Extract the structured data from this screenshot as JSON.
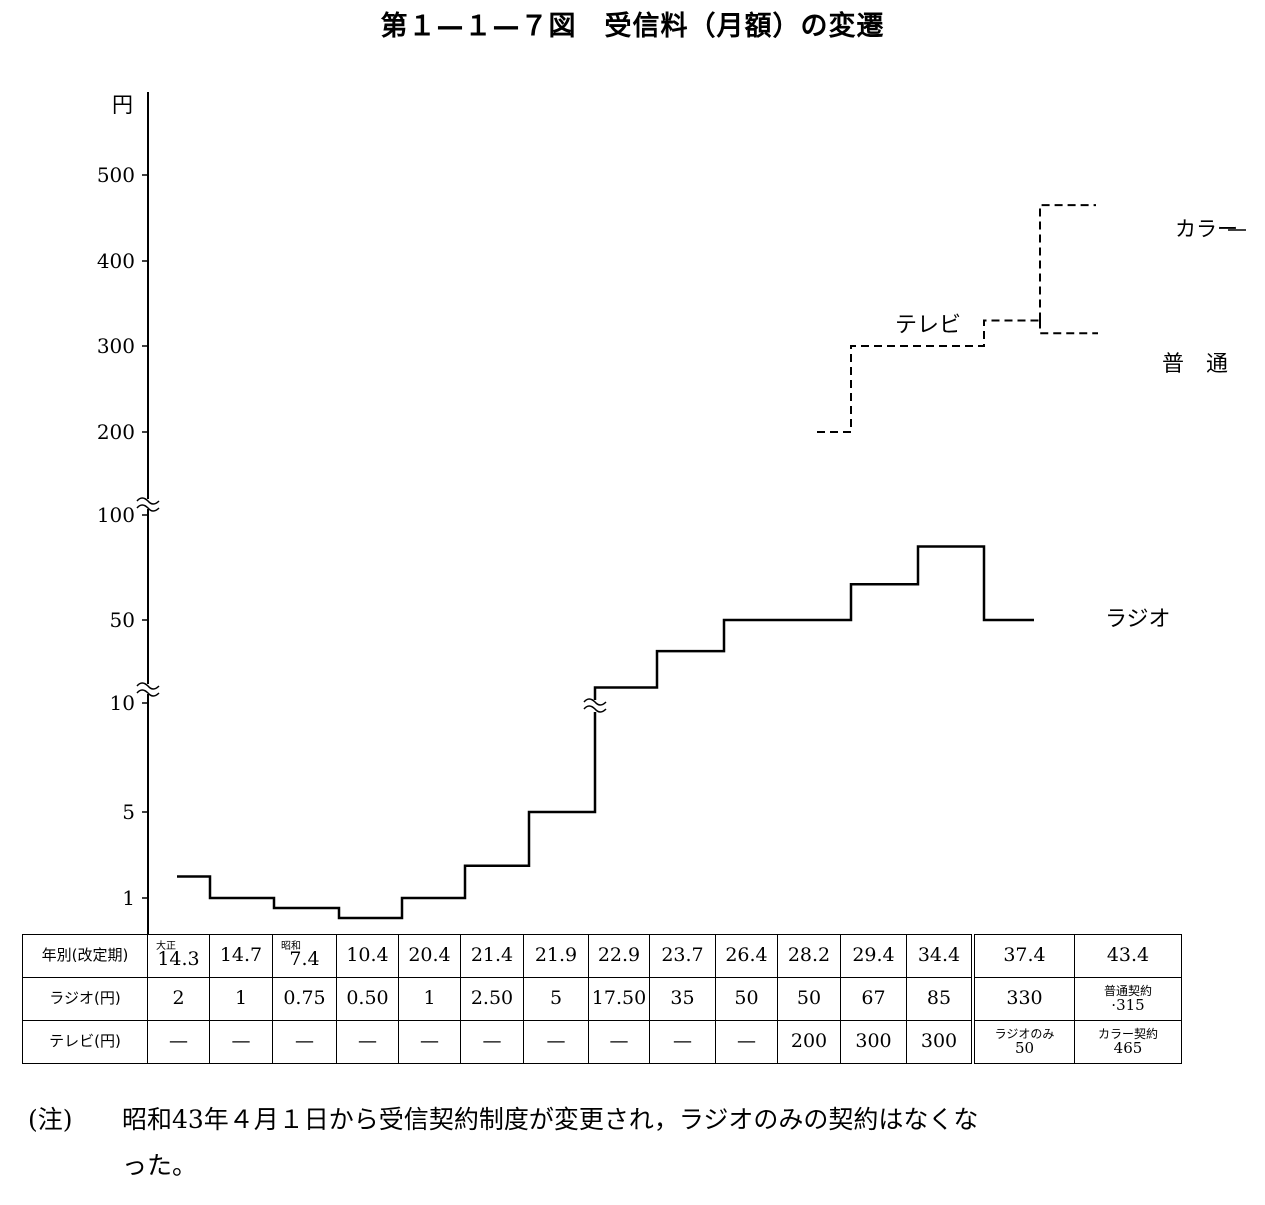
{
  "title": "第１—１—７図　受信料（月額）の変遷",
  "chart_data": {
    "type": "line",
    "style": "step",
    "y_unit": "円",
    "y_axis": {
      "scale": "broken (non-linear segments)",
      "ticks": [
        1,
        5,
        10,
        50,
        100,
        200,
        300,
        400,
        500
      ],
      "breaks": [
        10,
        100
      ]
    },
    "x_categories": [
      "14.3",
      "14.7",
      "7.4",
      "10.4",
      "20.4",
      "21.4",
      "21.9",
      "22.9",
      "23.7",
      "26.4",
      "28.2",
      "29.4",
      "34.4",
      "37.4",
      "43.4"
    ],
    "series": [
      {
        "name": "ラジオ",
        "line": "solid",
        "x": [
          "14.3",
          "14.7",
          "7.4",
          "10.4",
          "20.4",
          "21.4",
          "21.9",
          "22.9",
          "23.7",
          "26.4",
          "28.2",
          "29.4",
          "34.4",
          "37.4"
        ],
        "values": [
          2,
          1,
          0.75,
          0.5,
          1,
          2.5,
          5,
          17.5,
          35,
          50,
          50,
          67,
          85,
          50
        ]
      },
      {
        "name": "テレビ",
        "line": "dashed",
        "x": [
          "28.2",
          "29.4",
          "34.4",
          "37.4"
        ],
        "values": [
          200,
          300,
          300,
          330
        ]
      },
      {
        "name": "カラー",
        "line": "dashed",
        "x": [
          "43.4"
        ],
        "values": [
          465
        ]
      },
      {
        "name": "普　通",
        "line": "dashed",
        "x": [
          "43.4"
        ],
        "values": [
          315
        ]
      }
    ]
  },
  "table": {
    "row_headers": [
      "年別(改定期)",
      "ラジオ(円)",
      "テレビ(円)"
    ],
    "columns": [
      {
        "era": "大正",
        "year": "14.3",
        "radio": "2",
        "tv": "—"
      },
      {
        "era": "",
        "year": "14.7",
        "radio": "1",
        "tv": "—"
      },
      {
        "era": "昭和",
        "year": "7.4",
        "radio": "0.75",
        "tv": "—"
      },
      {
        "era": "",
        "year": "10.4",
        "radio": "0.50",
        "tv": "—"
      },
      {
        "era": "",
        "year": "20.4",
        "radio": "1",
        "tv": "—"
      },
      {
        "era": "",
        "year": "21.4",
        "radio": "2.50",
        "tv": "—"
      },
      {
        "era": "",
        "year": "21.9",
        "radio": "5",
        "tv": "—"
      },
      {
        "era": "",
        "year": "22.9",
        "radio": "17.50",
        "tv": "—"
      },
      {
        "era": "",
        "year": "23.7",
        "radio": "35",
        "tv": "—"
      },
      {
        "era": "",
        "year": "26.4",
        "radio": "50",
        "tv": "—"
      },
      {
        "era": "",
        "year": "28.2",
        "radio": "50",
        "tv": "200"
      },
      {
        "era": "",
        "year": "29.4",
        "radio": "67",
        "tv": "300"
      },
      {
        "era": "",
        "year": "34.4",
        "radio": "85",
        "tv": "300"
      },
      {
        "era": "",
        "year": "37.4",
        "radio": "330",
        "tv_label": "ラジオのみ",
        "tv_value": "50"
      },
      {
        "era": "",
        "year": "43.4",
        "radio_label": "普通契約",
        "radio_value": "·315",
        "tv_label": "カラー契約",
        "tv_value": "465"
      }
    ]
  },
  "note": {
    "label": "(注)",
    "line1": "昭和43年４月１日から受信契約制度が変更され，ラジオのみの契約はなくな",
    "line2": "った。"
  }
}
